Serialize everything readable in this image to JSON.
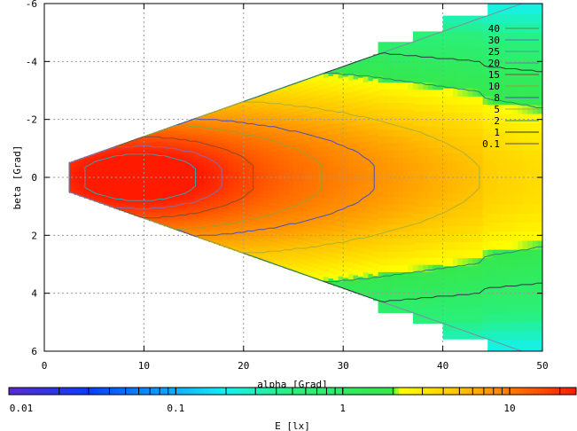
{
  "chart_data": {
    "type": "heatmap",
    "title": "",
    "xlabel": "alpha [Grad]",
    "ylabel": "beta [Grad]",
    "xlim": [
      0,
      50
    ],
    "ylim": [
      6,
      -6
    ],
    "x_ticks": [
      "0",
      "10",
      "20",
      "30",
      "40",
      "50"
    ],
    "y_ticks": [
      "-6",
      "-4",
      "-2",
      "0",
      "2",
      "4",
      "6"
    ],
    "grid": true,
    "colorbar": {
      "label": "E [lx]",
      "scale": "log",
      "range": [
        0.01,
        25
      ],
      "ticks": [
        "0.01",
        "0.1",
        "1",
        "10"
      ],
      "colors": [
        "#5a2bd0",
        "#0a3cff",
        "#0a9cff",
        "#12f2f0",
        "#2af07a",
        "#35e84d",
        "#ffff00",
        "#ffc400",
        "#ff7a00",
        "#ff1a00"
      ]
    },
    "contour_levels": [
      "40",
      "30",
      "25",
      "20",
      "15",
      "10",
      "8",
      "5",
      "2",
      "1",
      "0.1"
    ],
    "contour_colors": [
      "#3d9a3d",
      "#4f6fb0",
      "#3aa0a0",
      "#8a6ab0",
      "#8a4a2a",
      "#9aa030",
      "#4a4fc0",
      "#b0b030",
      "#2a8a6a",
      "#2a3a3a",
      "#505050"
    ],
    "bands": [
      {
        "x": 2.5,
        "dx": 2.5,
        "zone": 0.1
      },
      {
        "x": 5,
        "dx": 2.5,
        "zone": 1
      },
      {
        "x": 7.5,
        "dx": 2.5,
        "zone": 2
      },
      {
        "x": 10,
        "dx": 2.5,
        "zone": 3
      },
      {
        "x": 12.5,
        "dx": 2.5,
        "zone": 4
      },
      {
        "x": 15,
        "dx": 2.5,
        "zone": 5
      },
      {
        "x": 17.5,
        "dx": 2.5,
        "zone": 6
      },
      {
        "x": 20,
        "dx": 2.5,
        "zone": 7
      },
      {
        "x": 22.5,
        "dx": 2.5,
        "zone": 8
      },
      {
        "x": 25,
        "dx": 2.5,
        "zone": 9
      },
      {
        "x": 27.5,
        "dx": 2.5,
        "zone": 10
      },
      {
        "x": 30,
        "dx": 3.5,
        "zone": 11
      },
      {
        "x": 33.5,
        "dx": 3.5,
        "zone": 12
      },
      {
        "x": 37,
        "dx": 3,
        "zone": 13
      },
      {
        "x": 40,
        "dx": 4.5,
        "zone": 14
      },
      {
        "x": 44.5,
        "dx": 5.5,
        "zone": 15
      }
    ]
  }
}
